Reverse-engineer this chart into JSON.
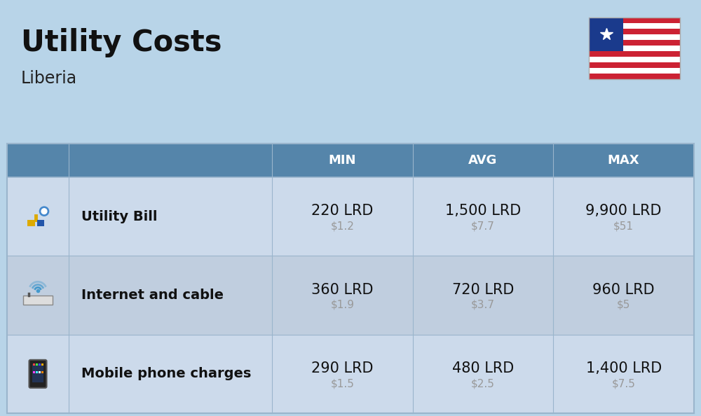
{
  "title": "Utility Costs",
  "subtitle": "Liberia",
  "background_color": "#b8d4e8",
  "header_bg_color": "#5585aa",
  "header_text_color": "#ffffff",
  "row_bg_color_odd": "#ccdaeb",
  "row_bg_color_even": "#c0cedf",
  "divider_color": "#9ab5cc",
  "col_headers": [
    "MIN",
    "AVG",
    "MAX"
  ],
  "rows": [
    {
      "label": "Utility Bill",
      "icon": "utility",
      "min_lrd": "220 LRD",
      "min_usd": "$1.2",
      "avg_lrd": "1,500 LRD",
      "avg_usd": "$7.7",
      "max_lrd": "9,900 LRD",
      "max_usd": "$51"
    },
    {
      "label": "Internet and cable",
      "icon": "internet",
      "min_lrd": "360 LRD",
      "min_usd": "$1.9",
      "avg_lrd": "720 LRD",
      "avg_usd": "$3.7",
      "max_lrd": "960 LRD",
      "max_usd": "$5"
    },
    {
      "label": "Mobile phone charges",
      "icon": "phone",
      "min_lrd": "290 LRD",
      "min_usd": "$1.5",
      "avg_lrd": "480 LRD",
      "avg_usd": "$2.5",
      "max_lrd": "1,400 LRD",
      "max_usd": "$7.5"
    }
  ],
  "title_fontsize": 30,
  "subtitle_fontsize": 17,
  "header_fontsize": 13,
  "cell_lrd_fontsize": 15,
  "cell_usd_fontsize": 11,
  "label_fontsize": 14,
  "flag_red": "#cc2233",
  "flag_blue": "#1a3a8c",
  "flag_white": "#ffffff"
}
